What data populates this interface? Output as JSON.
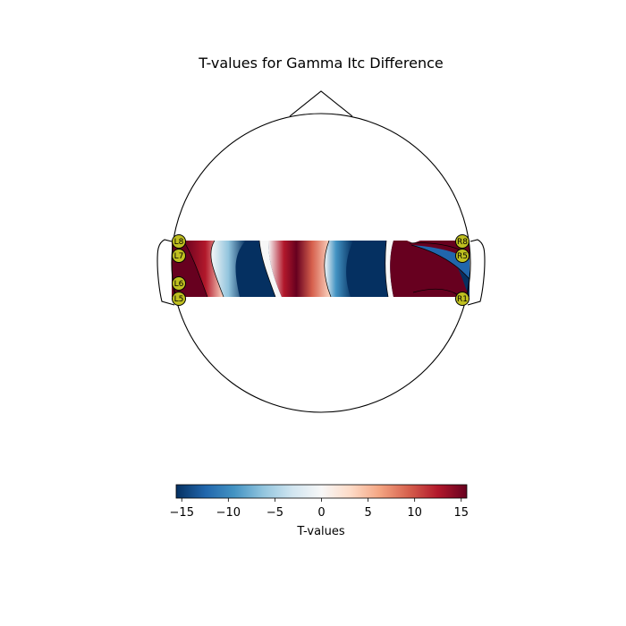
{
  "chart_data": {
    "type": "heatmap",
    "title": "T-values for Gamma Itc Difference",
    "colorbar": {
      "label": "T-values",
      "vmin": -15.6,
      "vmax": 15.6,
      "ticks": [
        -15,
        -10,
        -5,
        0,
        5,
        10,
        15
      ],
      "tick_labels": [
        "−15",
        "−10",
        "−5",
        "0",
        "5",
        "10",
        "15"
      ],
      "colormap": "RdBu_r",
      "stops": [
        "#053061",
        "#2166ac",
        "#4393c3",
        "#92c5de",
        "#d1e5f0",
        "#f7f7f7",
        "#fddbc7",
        "#f4a582",
        "#d6604d",
        "#b2182b",
        "#67001f"
      ]
    },
    "sensors": {
      "left": [
        "L8",
        "L7",
        "L6",
        "L5"
      ],
      "right": [
        "R8",
        "R5",
        "R1"
      ],
      "marker_color": "#bfbf20"
    },
    "head_outline_color": "#000000"
  }
}
